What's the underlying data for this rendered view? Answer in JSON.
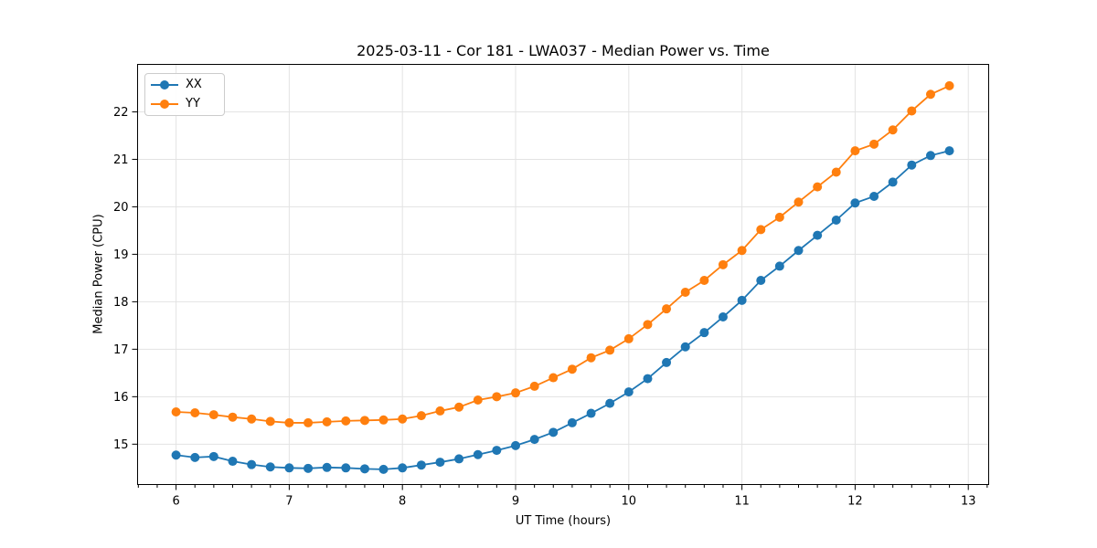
{
  "chart_data": {
    "type": "line",
    "title": "2025-03-11 - Cor 181 - LWA037 - Median Power vs. Time",
    "xlabel": "UT Time (hours)",
    "ylabel": "Median Power (CPU)",
    "xlim": [
      5.66,
      13.18
    ],
    "ylim": [
      14.15,
      23.0
    ],
    "xticks": [
      6,
      7,
      8,
      9,
      10,
      11,
      12,
      13
    ],
    "yticks": [
      15,
      16,
      17,
      18,
      19,
      20,
      21,
      22
    ],
    "minor_xtick_step": 0.166667,
    "grid": true,
    "legend_position": "upper-left",
    "marker": "circle",
    "x": [
      6.0,
      6.167,
      6.333,
      6.5,
      6.667,
      6.833,
      7.0,
      7.167,
      7.333,
      7.5,
      7.667,
      7.833,
      8.0,
      8.167,
      8.333,
      8.5,
      8.667,
      8.833,
      9.0,
      9.167,
      9.333,
      9.5,
      9.667,
      9.833,
      10.0,
      10.167,
      10.333,
      10.5,
      10.667,
      10.833,
      11.0,
      11.167,
      11.333,
      11.5,
      11.667,
      11.833,
      12.0,
      12.167,
      12.333,
      12.5,
      12.667,
      12.833
    ],
    "series": [
      {
        "name": "XX",
        "color": "#1f77b4",
        "values": [
          14.77,
          14.72,
          14.74,
          14.64,
          14.57,
          14.52,
          14.5,
          14.49,
          14.51,
          14.5,
          14.48,
          14.47,
          14.5,
          14.56,
          14.62,
          14.69,
          14.78,
          14.87,
          14.97,
          15.1,
          15.25,
          15.45,
          15.65,
          15.86,
          16.1,
          16.38,
          16.72,
          17.05,
          17.35,
          17.68,
          18.03,
          18.45,
          18.75,
          19.08,
          19.4,
          19.72,
          20.08,
          20.22,
          20.52,
          20.88,
          21.08,
          21.18
        ]
      },
      {
        "name": "YY",
        "color": "#ff7f0e",
        "values": [
          15.68,
          15.66,
          15.62,
          15.57,
          15.53,
          15.48,
          15.45,
          15.45,
          15.47,
          15.49,
          15.5,
          15.51,
          15.53,
          15.6,
          15.7,
          15.78,
          15.93,
          16.0,
          16.08,
          16.22,
          16.4,
          16.58,
          16.82,
          16.98,
          17.22,
          17.52,
          17.85,
          18.2,
          18.45,
          18.78,
          19.08,
          19.52,
          19.78,
          20.1,
          20.42,
          20.73,
          21.18,
          21.32,
          21.62,
          22.02,
          22.37,
          22.55
        ]
      }
    ],
    "colors": {
      "axis": "#000000",
      "grid": "#e3e3e3",
      "tick_label": "#000000",
      "background": "#ffffff"
    }
  }
}
